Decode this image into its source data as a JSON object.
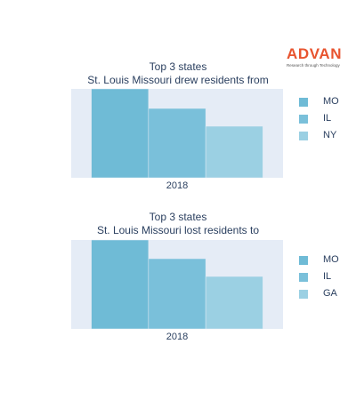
{
  "logo": {
    "word": "ADVAN",
    "tagline": "Research through Technology"
  },
  "chart_data": [
    {
      "type": "bar",
      "title": "Top 3 states",
      "subtitle": "St. Louis Missouri drew residents from",
      "categories": [
        "2018"
      ],
      "series": [
        {
          "name": "MO",
          "values": [
            100
          ],
          "color": "#6fbbd6"
        },
        {
          "name": "IL",
          "values": [
            78
          ],
          "color": "#7ac0da"
        },
        {
          "name": "NY",
          "values": [
            58
          ],
          "color": "#9bd0e3"
        }
      ],
      "ylim": [
        0,
        100
      ],
      "grid": true,
      "legend": "right"
    },
    {
      "type": "bar",
      "title": "Top 3 states",
      "subtitle": "St. Louis Missouri lost residents to",
      "categories": [
        "2018"
      ],
      "series": [
        {
          "name": "MO",
          "values": [
            100
          ],
          "color": "#6fbbd6"
        },
        {
          "name": "IL",
          "values": [
            79
          ],
          "color": "#7ac0da"
        },
        {
          "name": "GA",
          "values": [
            59
          ],
          "color": "#9bd0e3"
        }
      ],
      "ylim": [
        0,
        100
      ],
      "grid": true,
      "legend": "right"
    }
  ]
}
